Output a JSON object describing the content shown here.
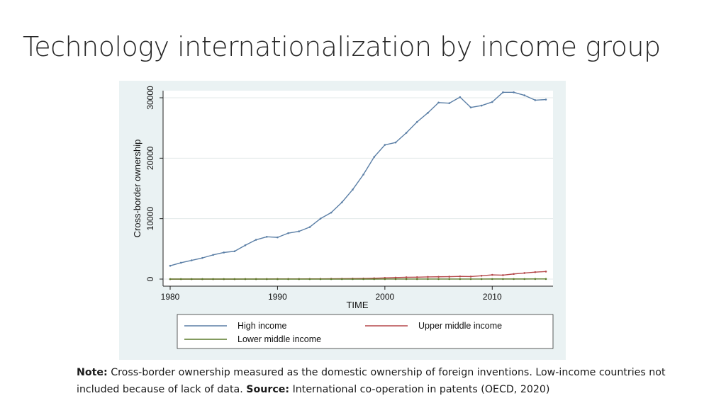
{
  "slide": {
    "title": "Technology internationalization by income group"
  },
  "note": {
    "note_label": "Note:",
    "note_text": "Cross-border ownership measured as the domestic ownership of foreign inventions. Low-income countries not included because of lack of data.",
    "source_label": "Source:",
    "source_text": "International co-operation in patents (OECD, 2020)"
  },
  "chart_data": {
    "type": "line",
    "title": "",
    "xlabel": "TIME",
    "ylabel": "Cross-border ownership",
    "xlim": [
      1980,
      2015
    ],
    "ylim": [
      0,
      30000
    ],
    "xticks": [
      1980,
      1990,
      2000,
      2010
    ],
    "yticks": [
      0,
      10000,
      20000,
      30000
    ],
    "grid": true,
    "legend_position": "bottom",
    "x": [
      1980,
      1981,
      1982,
      1983,
      1984,
      1985,
      1986,
      1987,
      1988,
      1989,
      1990,
      1991,
      1992,
      1993,
      1994,
      1995,
      1996,
      1997,
      1998,
      1999,
      2000,
      2001,
      2002,
      2003,
      2004,
      2005,
      2006,
      2007,
      2008,
      2009,
      2010,
      2011,
      2012,
      2013,
      2014,
      2015
    ],
    "series": [
      {
        "name": "High income",
        "color": "#5b7fa6",
        "values": [
          2200,
          2700,
          3100,
          3500,
          4000,
          4400,
          4600,
          5600,
          6500,
          7000,
          6900,
          7600,
          7900,
          8600,
          10000,
          11000,
          12700,
          14800,
          17300,
          20200,
          22200,
          22600,
          24200,
          26000,
          27500,
          29200,
          29100,
          30100,
          28400,
          28700,
          29300,
          30900,
          30900,
          30400,
          29600,
          29700
        ]
      },
      {
        "name": "Upper middle income",
        "color": "#b5494b",
        "values": [
          0,
          0,
          0,
          0,
          0,
          0,
          0,
          10,
          10,
          10,
          20,
          20,
          20,
          30,
          40,
          50,
          60,
          80,
          100,
          140,
          200,
          250,
          300,
          320,
          360,
          380,
          400,
          450,
          420,
          550,
          700,
          650,
          850,
          1000,
          1150,
          1250
        ]
      },
      {
        "name": "Lower middle income",
        "color": "#5a7a2a",
        "values": [
          0,
          0,
          0,
          0,
          0,
          0,
          0,
          0,
          0,
          0,
          0,
          0,
          0,
          0,
          0,
          0,
          0,
          0,
          0,
          0,
          5,
          5,
          5,
          5,
          10,
          10,
          10,
          10,
          10,
          10,
          15,
          15,
          15,
          15,
          20,
          20
        ]
      }
    ]
  }
}
